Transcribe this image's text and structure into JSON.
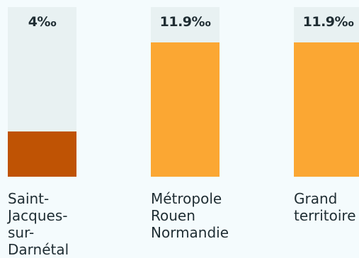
{
  "chart_data": {
    "type": "bar",
    "categories": [
      "Saint-\nJacques-\nsur-\nDarnétal",
      "Métropole\nRouen\nNormandie",
      "Grand\nterritoire"
    ],
    "values": [
      4,
      11.9,
      11.9
    ],
    "value_labels": [
      "4‰",
      "11.9‰",
      "11.9‰"
    ],
    "ylim": [
      0,
      15
    ],
    "unit": "‰",
    "bar_colors": [
      "#bf5304",
      "#fba733",
      "#fba733"
    ],
    "track_color": "#e8f1f2",
    "grid": false,
    "legend": "none"
  }
}
